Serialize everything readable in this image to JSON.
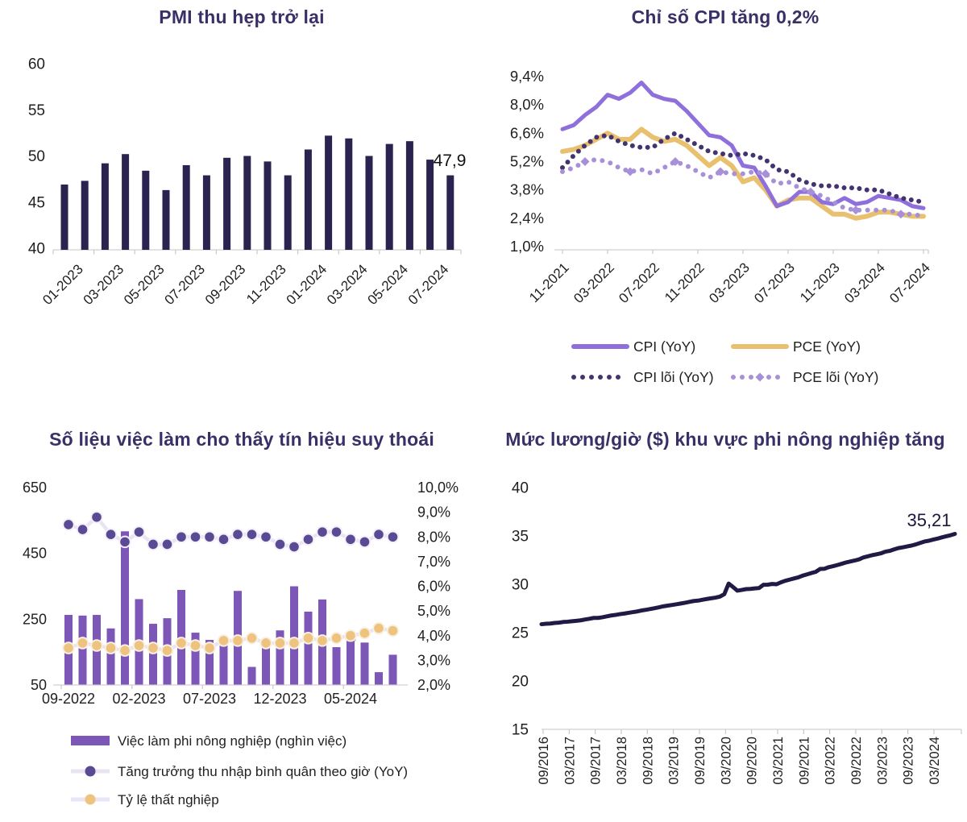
{
  "colors": {
    "title": "#3a2f66",
    "axis_text": "#1f1f1f",
    "axis_line": "#d9d9d9",
    "tick": "#c9c9c9",
    "annotation": "#111111",
    "legend_text": "#1f1f1f",
    "pmi_bar": "#2a2350",
    "cpi_line": "#8f6fdb",
    "pce_line": "#e9c06e",
    "cpi_core": "#43336e",
    "pce_core": "#a890d8",
    "jobs_bar": "#7d57b8",
    "dot_connector": "#e9e3f4",
    "earnings_dot": "#5a4a94",
    "unemployment_dot": "#eec37f",
    "dot_rim": "#f3f0fa",
    "yellow_rim": "#f8f1e2",
    "ghost_outline": "#b5a3d6",
    "wage_line": "#211a44",
    "wage_annotation": "#1c163c"
  },
  "chart_data": [
    {
      "id": "pmi",
      "type": "bar",
      "title": "PMI thu hẹp trở lại",
      "annotation_label": "47,9",
      "ylim": [
        40,
        60
      ],
      "grid": false,
      "y_tick_labels": [
        "60",
        "55",
        "50",
        "45",
        "40"
      ],
      "y_tick_values": [
        60,
        55,
        50,
        45,
        40
      ],
      "categories": [
        "01-2023",
        "02-2023",
        "03-2023",
        "04-2023",
        "05-2023",
        "06-2023",
        "07-2023",
        "08-2023",
        "09-2023",
        "10-2023",
        "11-2023",
        "12-2023",
        "01-2024",
        "02-2024",
        "03-2024",
        "04-2024",
        "05-2024",
        "06-2024",
        "07-2024",
        "08-2024"
      ],
      "x_tick_labels": [
        "01-2023",
        "03-2023",
        "05-2023",
        "07-2023",
        "09-2023",
        "11-2023",
        "01-2024",
        "03-2024",
        "05-2024",
        "07-2024"
      ],
      "values": [
        46.9,
        47.3,
        49.2,
        50.2,
        48.4,
        46.3,
        49.0,
        47.9,
        49.8,
        50.0,
        49.4,
        47.9,
        50.7,
        52.2,
        51.9,
        50.0,
        51.3,
        51.6,
        49.6,
        47.9
      ]
    },
    {
      "id": "cpi",
      "type": "line",
      "title": "Chỉ số CPI tăng 0,2%",
      "ylim": [
        1.0,
        9.4
      ],
      "grid": false,
      "legend_position": "bottom",
      "y_tick_labels": [
        "9,4%",
        "8,0%",
        "6,6%",
        "5,2%",
        "3,8%",
        "2,4%",
        "1,0%"
      ],
      "y_tick_values": [
        9.4,
        8.0,
        6.6,
        5.2,
        3.8,
        2.4,
        1.0
      ],
      "x_start": "11-2021",
      "freq": "monthly",
      "x_tick_labels": [
        "11-2021",
        "03-2022",
        "07-2022",
        "11-2022",
        "03-2023",
        "07-2023",
        "11-2023",
        "03-2024",
        "07-2024"
      ],
      "tick_every": 4,
      "series": [
        {
          "name": "CPI (YoY)",
          "style": "solid",
          "values": [
            6.8,
            7.0,
            7.5,
            7.9,
            8.5,
            8.3,
            8.6,
            9.1,
            8.5,
            8.3,
            8.2,
            7.7,
            7.1,
            6.5,
            6.4,
            6.0,
            5.0,
            4.9,
            4.0,
            3.0,
            3.2,
            3.7,
            3.7,
            3.2,
            3.1,
            3.4,
            3.1,
            3.2,
            3.5,
            3.4,
            3.3,
            3.0,
            2.9
          ]
        },
        {
          "name": "PCE (YoY)",
          "style": "solid",
          "values": [
            5.7,
            5.8,
            6.0,
            6.3,
            6.6,
            6.3,
            6.3,
            6.8,
            6.4,
            6.2,
            6.3,
            6.0,
            5.5,
            5.0,
            5.4,
            5.0,
            4.2,
            4.4,
            3.8,
            3.0,
            3.3,
            3.4,
            3.4,
            3.0,
            2.6,
            2.6,
            2.4,
            2.5,
            2.7,
            2.7,
            2.6,
            2.5,
            2.5
          ]
        },
        {
          "name": "CPI lõi (YoY)",
          "style": "dotted",
          "values": [
            4.9,
            5.5,
            6.0,
            6.4,
            6.5,
            6.2,
            6.0,
            5.9,
            5.9,
            6.3,
            6.6,
            6.3,
            6.0,
            5.7,
            5.6,
            5.5,
            5.6,
            5.5,
            5.3,
            4.8,
            4.7,
            4.3,
            4.1,
            4.0,
            4.0,
            3.9,
            3.9,
            3.8,
            3.8,
            3.6,
            3.4,
            3.3,
            3.2
          ]
        },
        {
          "name": "PCE lõi (YoY)",
          "style": "dotted-diamond",
          "values": [
            4.7,
            4.9,
            5.2,
            5.3,
            5.2,
            4.9,
            4.7,
            4.8,
            4.6,
            4.9,
            5.2,
            5.0,
            4.7,
            4.4,
            4.7,
            4.6,
            4.6,
            4.7,
            4.6,
            4.1,
            4.2,
            3.9,
            3.7,
            3.5,
            3.2,
            2.9,
            2.8,
            2.8,
            2.8,
            2.8,
            2.6,
            2.6,
            2.5
          ]
        }
      ]
    },
    {
      "id": "jobs",
      "type": "combo-bar-line",
      "title": "Số liệu việc làm cho thấy tín hiệu suy thoái",
      "left_ylim": [
        50,
        650
      ],
      "right_ylim": [
        2.0,
        10.0
      ],
      "grid": false,
      "left_tick_labels": [
        "650",
        "450",
        "250",
        "50"
      ],
      "left_tick_values": [
        650,
        450,
        250,
        50
      ],
      "right_tick_labels": [
        "10,0%",
        "9,0%",
        "8,0%",
        "7,0%",
        "6,0%",
        "5,0%",
        "4,0%",
        "3,0%",
        "2,0%"
      ],
      "right_tick_values": [
        10,
        9,
        8,
        7,
        6,
        5,
        4,
        3,
        2
      ],
      "categories": [
        "09-2022",
        "10-2022",
        "11-2022",
        "12-2022",
        "01-2023",
        "02-2023",
        "03-2023",
        "04-2023",
        "05-2023",
        "06-2023",
        "07-2023",
        "08-2023",
        "09-2023",
        "10-2023",
        "11-2023",
        "12-2023",
        "01-2024",
        "02-2024",
        "03-2024",
        "04-2024",
        "05-2024",
        "06-2024",
        "07-2024",
        "08-2024"
      ],
      "x_tick_labels": [
        "09-2022",
        "02-2023",
        "07-2023",
        "12-2023",
        "05-2024"
      ],
      "tick_every": 5,
      "payrolls": [
        263,
        261,
        263,
        222,
        517,
        311,
        236,
        253,
        339,
        209,
        187,
        187,
        336,
        105,
        165,
        216,
        350,
        273,
        310,
        165,
        185,
        179,
        89,
        142
      ],
      "earnings_growth": [
        8.5,
        8.3,
        8.8,
        8.1,
        7.8,
        8.2,
        7.7,
        7.7,
        8.0,
        8.0,
        8.0,
        7.9,
        8.1,
        8.1,
        8.0,
        7.7,
        7.6,
        7.9,
        8.2,
        8.2,
        7.9,
        7.8,
        8.1,
        8.0
      ],
      "unemployment": [
        3.5,
        3.7,
        3.6,
        3.5,
        3.4,
        3.6,
        3.5,
        3.4,
        3.7,
        3.6,
        3.5,
        3.8,
        3.8,
        3.9,
        3.7,
        3.7,
        3.7,
        3.9,
        3.8,
        3.9,
        4.0,
        4.1,
        4.3,
        4.2
      ],
      "ghost_bar": {
        "index": 20,
        "value": 209
      },
      "legend": [
        "Việc làm phi nông nghiệp (nghìn việc)",
        "Tăng trưởng thu nhập bình quân theo giờ (YoY)",
        "Tỷ lệ thất nghiệp"
      ]
    },
    {
      "id": "wage",
      "type": "line",
      "title": "Mức lương/giờ ($) khu vực phi nông nghiệp tăng",
      "annotation_label": "35,21",
      "ylim": [
        15,
        40
      ],
      "grid": false,
      "y_tick_labels": [
        "40",
        "35",
        "30",
        "25",
        "20",
        "15"
      ],
      "y_tick_values": [
        40,
        35,
        30,
        25,
        20,
        15
      ],
      "x_start": "09/2016",
      "freq": "monthly",
      "x_tick_labels": [
        "09/2016",
        "03/2017",
        "09/2017",
        "03/2018",
        "09/2018",
        "03/2019",
        "09/2019",
        "03/2020",
        "09/2020",
        "03/2021",
        "09/2021",
        "03/2022",
        "09/2022",
        "03/2023",
        "09/2023",
        "03/2024"
      ],
      "tick_every": 6,
      "values": [
        25.87,
        25.92,
        25.94,
        26.0,
        26.03,
        26.1,
        26.13,
        26.18,
        26.22,
        26.27,
        26.36,
        26.43,
        26.52,
        26.52,
        26.59,
        26.68,
        26.77,
        26.83,
        26.91,
        26.97,
        27.05,
        27.12,
        27.19,
        27.29,
        27.36,
        27.44,
        27.53,
        27.62,
        27.72,
        27.79,
        27.86,
        27.93,
        28.01,
        28.09,
        28.18,
        28.27,
        28.31,
        28.4,
        28.48,
        28.55,
        28.62,
        28.72,
        28.97,
        30.07,
        29.72,
        29.34,
        29.41,
        29.5,
        29.52,
        29.57,
        29.61,
        29.95,
        29.96,
        30.03,
        30.0,
        30.2,
        30.36,
        30.48,
        30.6,
        30.71,
        30.89,
        31.02,
        31.16,
        31.28,
        31.58,
        31.6,
        31.77,
        31.87,
        31.99,
        32.12,
        32.26,
        32.36,
        32.46,
        32.58,
        32.78,
        32.89,
        33.01,
        33.1,
        33.2,
        33.37,
        33.45,
        33.6,
        33.74,
        33.82,
        33.91,
        34.0,
        34.12,
        34.27,
        34.42,
        34.5,
        34.62,
        34.72,
        34.85,
        34.96,
        35.07,
        35.21
      ]
    }
  ]
}
